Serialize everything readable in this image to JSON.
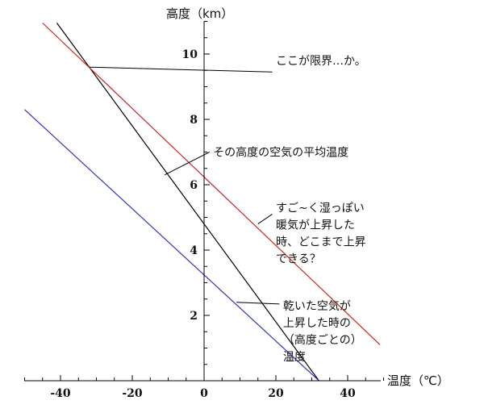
{
  "chart_data": {
    "type": "line",
    "xlabel": "温度（℃）",
    "ylabel": "高度（km）",
    "xlim": [
      -50,
      50
    ],
    "ylim": [
      0,
      11
    ],
    "x_ticks": [
      -40,
      -20,
      0,
      20,
      40
    ],
    "y_ticks": [
      2,
      4,
      6,
      8,
      10
    ],
    "grid": false,
    "series": [
      {
        "color": "#000000",
        "x": [
          -41,
          32
        ],
        "y": [
          10.95,
          0
        ]
      },
      {
        "color": "#cc2222",
        "x": [
          -45,
          49
        ],
        "y": [
          10.95,
          1.1
        ]
      },
      {
        "color": "#3333bb",
        "x": [
          -50,
          32
        ],
        "y": [
          8.3,
          0
        ]
      }
    ],
    "annotations": [
      {
        "lines": [
          "ここが限界…か。"
        ],
        "pointer": [
          [
            -32,
            9.6
          ],
          [
            19,
            9.45
          ]
        ],
        "text_at": [
          20,
          9.8
        ]
      },
      {
        "lines": [
          "その高度の空気の平均温度"
        ],
        "pointer": [
          [
            -11,
            6.3
          ],
          [
            1.5,
            7.0
          ]
        ],
        "text_at": [
          2.5,
          7.0
        ]
      },
      {
        "lines": [
          "すご~く湿っぽい",
          "暖気が上昇した",
          "時、どこまで上昇",
          "できる？"
        ],
        "pointer": [
          [
            15,
            4.8
          ],
          [
            19,
            5.1
          ]
        ],
        "text_at": [
          20,
          5.3
        ]
      },
      {
        "lines": [
          "乾いた空気が",
          "上昇した時の",
          "（高度ごとの）",
          "温度"
        ],
        "pointer": [
          [
            9,
            2.4
          ],
          [
            21,
            2.35
          ]
        ],
        "text_at": [
          22,
          2.3
        ]
      }
    ]
  }
}
